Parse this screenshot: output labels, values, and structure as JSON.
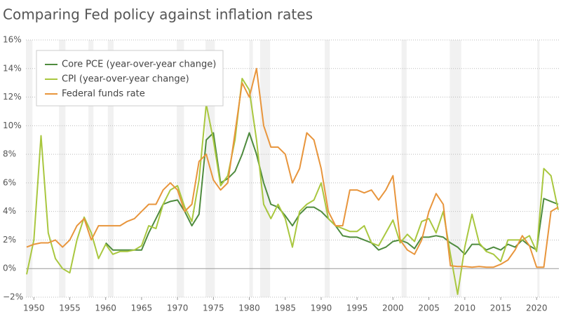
{
  "chart_data": {
    "type": "line",
    "title": "Comparing Fed policy against inflation rates",
    "x": [
      1949,
      1950,
      1951,
      1952,
      1953,
      1954,
      1955,
      1956,
      1957,
      1958,
      1959,
      1960,
      1961,
      1962,
      1963,
      1964,
      1965,
      1966,
      1967,
      1968,
      1969,
      1970,
      1971,
      1972,
      1973,
      1974,
      1975,
      1976,
      1977,
      1978,
      1979,
      1980,
      1981,
      1982,
      1983,
      1984,
      1985,
      1986,
      1987,
      1988,
      1989,
      1990,
      1991,
      1992,
      1993,
      1994,
      1995,
      1996,
      1997,
      1998,
      1999,
      2000,
      2001,
      2002,
      2003,
      2004,
      2005,
      2006,
      2007,
      2008,
      2009,
      2010,
      2011,
      2012,
      2013,
      2014,
      2015,
      2016,
      2017,
      2018,
      2019,
      2020,
      2021,
      2022,
      2023
    ],
    "series": [
      {
        "name": "Core PCE (year-over-year change)",
        "color": "#4e8b3e",
        "values": [
          null,
          null,
          null,
          null,
          null,
          null,
          null,
          null,
          null,
          null,
          null,
          1.8,
          1.3,
          1.3,
          1.3,
          1.3,
          1.3,
          2.5,
          3.5,
          4.5,
          4.7,
          4.8,
          4,
          3,
          3.8,
          9,
          9.5,
          6,
          6.3,
          6.8,
          8,
          9.5,
          8,
          6,
          4.5,
          4.3,
          3.7,
          3,
          3.8,
          4.3,
          4.3,
          4,
          3.5,
          3,
          2.3,
          2.2,
          2.2,
          2,
          1.8,
          1.3,
          1.5,
          1.9,
          2,
          1.8,
          1.4,
          2.2,
          2.2,
          2.3,
          2.2,
          1.8,
          1.5,
          1,
          1.7,
          1.7,
          1.3,
          1.5,
          1.3,
          1.7,
          1.5,
          2,
          1.6,
          1.3,
          4.9,
          4.7,
          4.5
        ]
      },
      {
        "name": "CPI (year-over-year change)",
        "color": "#a9c73f",
        "values": [
          -0.4,
          2,
          9.3,
          2.5,
          0.7,
          0,
          -0.3,
          2,
          3.6,
          2.5,
          0.7,
          1.7,
          1,
          1.2,
          1.2,
          1.3,
          1.6,
          3,
          2.8,
          4.5,
          5.5,
          5.8,
          4.3,
          3.3,
          6.2,
          11.5,
          9,
          5.8,
          6.5,
          9,
          13.3,
          12.5,
          9,
          4.5,
          3.5,
          4.5,
          3.5,
          1.5,
          4,
          4.5,
          4.8,
          6,
          3.5,
          3,
          2.8,
          2.6,
          2.6,
          3,
          1.8,
          1.6,
          2.5,
          3.4,
          1.8,
          2.4,
          1.9,
          3.3,
          3.5,
          2.5,
          4,
          1,
          -1.8,
          1.5,
          3.8,
          1.8,
          1.2,
          1,
          0.5,
          2,
          2,
          2,
          2.3,
          1.2,
          7,
          6.5,
          4.1
        ]
      },
      {
        "name": "Federal funds rate",
        "color": "#e8953c",
        "values": [
          1.5,
          1.7,
          1.8,
          1.8,
          2,
          1.5,
          2,
          3,
          3.5,
          2,
          3,
          3,
          3,
          3,
          3.3,
          3.5,
          4,
          4.5,
          4.5,
          5.5,
          6,
          5.5,
          4,
          4.5,
          7.5,
          8,
          6.2,
          5.5,
          6,
          9.5,
          13,
          12,
          14,
          10,
          8.5,
          8.5,
          8,
          6,
          7,
          9.5,
          9,
          7,
          4,
          3,
          3,
          5.5,
          5.5,
          5.3,
          5.5,
          4.8,
          5.5,
          6.5,
          2,
          1.3,
          1,
          2,
          4,
          5.25,
          4.5,
          0.2,
          0.15,
          0.15,
          0.1,
          0.15,
          0.1,
          0.1,
          0.3,
          0.6,
          1.3,
          2.3,
          1.6,
          0.1,
          0.1,
          4,
          4.3
        ]
      }
    ],
    "recessions": [
      [
        1948.9,
        1949.8
      ],
      [
        1953.5,
        1954.4
      ],
      [
        1957.6,
        1958.3
      ],
      [
        1960.3,
        1961.1
      ],
      [
        1969.9,
        1970.9
      ],
      [
        1973.9,
        1975.2
      ],
      [
        1980,
        1980.5
      ],
      [
        1981.5,
        1982.9
      ],
      [
        1990.5,
        1991.2
      ],
      [
        2001.2,
        2001.9
      ],
      [
        2007.9,
        2009.5
      ],
      [
        2020.1,
        2020.4
      ]
    ],
    "xlim": [
      1948.9,
      2023.1
    ],
    "ylim": [
      -2,
      16
    ],
    "xticks": [
      1950,
      1955,
      1960,
      1965,
      1970,
      1975,
      1980,
      1985,
      1990,
      1995,
      2000,
      2005,
      2010,
      2015,
      2020
    ],
    "yticks": [
      {
        "value": -2,
        "label": "−2%"
      },
      {
        "value": 0,
        "label": "0%"
      },
      {
        "value": 2,
        "label": "2%"
      },
      {
        "value": 4,
        "label": "4%"
      },
      {
        "value": 6,
        "label": "6%"
      },
      {
        "value": 8,
        "label": "8%"
      },
      {
        "value": 10,
        "label": "10%"
      },
      {
        "value": 12,
        "label": "12%"
      },
      {
        "value": 14,
        "label": "14%"
      },
      {
        "value": 16,
        "label": "16%"
      }
    ],
    "grid": true,
    "legend": "upper left"
  }
}
